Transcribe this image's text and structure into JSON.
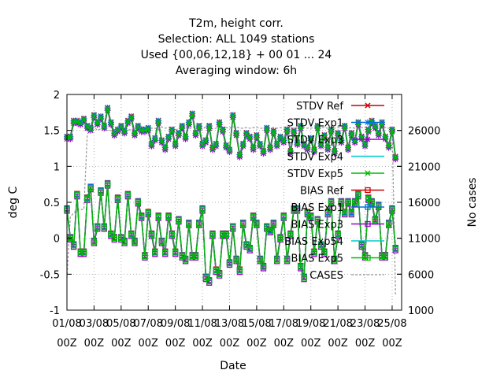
{
  "chart_data": {
    "type": "line",
    "title_lines": [
      "T2m, height corr.",
      "Selection: ALL    1049 stations",
      "Used {00,06,12,18} + 00 01 ... 24",
      "Averaging window:  6h"
    ],
    "xlabel": "Date",
    "ylabel": "deg C",
    "y2label": "No cases",
    "xlim": [
      0,
      24.7
    ],
    "ylim": [
      -1,
      2
    ],
    "y2lim": [
      1000,
      31000
    ],
    "x_ticks": [
      {
        "x": 0,
        "l1": "01/08",
        "l2": "00Z"
      },
      {
        "x": 2,
        "l1": "03/08",
        "l2": "00Z"
      },
      {
        "x": 4,
        "l1": "05/08",
        "l2": "00Z"
      },
      {
        "x": 6,
        "l1": "07/08",
        "l2": "00Z"
      },
      {
        "x": 8,
        "l1": "09/08",
        "l2": "00Z"
      },
      {
        "x": 10,
        "l1": "11/08",
        "l2": "00Z"
      },
      {
        "x": 12,
        "l1": "13/08",
        "l2": "00Z"
      },
      {
        "x": 14,
        "l1": "15/08",
        "l2": "00Z"
      },
      {
        "x": 16,
        "l1": "17/08",
        "l2": "00Z"
      },
      {
        "x": 18,
        "l1": "19/08",
        "l2": "00Z"
      },
      {
        "x": 20,
        "l1": "21/08",
        "l2": "00Z"
      },
      {
        "x": 22,
        "l1": "23/08",
        "l2": "00Z"
      },
      {
        "x": 24,
        "l1": "25/08",
        "l2": "00Z"
      }
    ],
    "y_ticks": [
      "-1",
      "-0.5",
      "0",
      "0.5",
      "1",
      "1.5",
      "2"
    ],
    "y2_ticks": [
      "1000",
      "6000",
      "11000",
      "16000",
      "21000",
      "26000"
    ],
    "grid": true,
    "legend_position": "top-right",
    "step_days": 0.25,
    "series": [
      {
        "name": "STDV Ref",
        "color": "#cc0000",
        "marker": "x",
        "group": "stdv"
      },
      {
        "name": "STDV Exp1",
        "color": "#0070e0",
        "marker": "star",
        "group": "stdv"
      },
      {
        "name": "STDV Exp3",
        "color": "#9900cc",
        "marker": "star",
        "group": "stdv"
      },
      {
        "name": "STDV Exp4",
        "color": "#00cccc",
        "marker": "none",
        "group": "stdv"
      },
      {
        "name": "STDV Exp5",
        "color": "#00bb00",
        "marker": "x",
        "group": "stdv"
      },
      {
        "name": "BIAS Ref",
        "color": "#cc0000",
        "marker": "square",
        "group": "bias"
      },
      {
        "name": "BIAS Exp1",
        "color": "#0070e0",
        "marker": "square",
        "group": "bias"
      },
      {
        "name": "BIAS Exp3",
        "color": "#9900cc",
        "marker": "square",
        "group": "bias"
      },
      {
        "name": "BIAS Exp54",
        "color": "#00cccc",
        "marker": "none",
        "group": "bias"
      },
      {
        "name": "BIAS Exp5",
        "color": "#00bb00",
        "marker": "square",
        "group": "bias"
      },
      {
        "name": "CASES",
        "color": "#999999",
        "marker": "dash",
        "group": "cases"
      }
    ],
    "stdv_values": [
      1.4,
      1.4,
      1.62,
      1.62,
      1.6,
      1.65,
      1.55,
      1.52,
      1.7,
      1.6,
      1.68,
      1.55,
      1.8,
      1.6,
      1.45,
      1.5,
      1.55,
      1.48,
      1.62,
      1.68,
      1.45,
      1.55,
      1.5,
      1.5,
      1.52,
      1.3,
      1.38,
      1.62,
      1.35,
      1.25,
      1.4,
      1.5,
      1.3,
      1.45,
      1.55,
      1.4,
      1.6,
      1.72,
      1.45,
      1.55,
      1.3,
      1.35,
      1.55,
      1.25,
      1.3,
      1.6,
      1.5,
      1.28,
      1.22,
      1.7,
      1.45,
      1.15,
      1.3,
      1.45,
      1.4,
      1.25,
      1.42,
      1.3,
      1.2,
      1.52,
      1.25,
      1.48,
      1.3,
      1.4,
      1.35,
      1.5,
      1.2,
      1.48,
      1.32,
      1.55,
      1.3,
      1.25,
      1.38,
      1.22,
      1.55,
      1.3,
      1.42,
      1.25,
      1.5,
      1.2,
      1.45,
      1.35,
      1.55,
      1.25,
      1.45,
      1.35,
      1.6,
      1.4,
      1.3,
      1.5,
      1.62,
      1.55,
      1.45,
      1.6,
      1.4,
      1.28,
      1.5,
      1.12
    ],
    "bias_values": [
      0.4,
      0.0,
      -0.1,
      0.6,
      -0.2,
      -0.2,
      0.55,
      0.7,
      -0.05,
      0.15,
      0.65,
      0.15,
      0.75,
      0.05,
      0.0,
      0.55,
      0.0,
      -0.05,
      0.6,
      0.05,
      -0.05,
      0.5,
      0.3,
      -0.25,
      0.35,
      0.05,
      -0.2,
      0.3,
      -0.05,
      -0.2,
      0.3,
      0.05,
      -0.2,
      0.25,
      -0.25,
      -0.3,
      0.2,
      -0.25,
      -0.25,
      0.2,
      0.4,
      -0.55,
      -0.6,
      0.05,
      -0.45,
      -0.5,
      0.05,
      0.05,
      -0.35,
      0.15,
      -0.3,
      -0.45,
      0.2,
      -0.1,
      -0.15,
      0.3,
      0.2,
      -0.3,
      -0.4,
      0.15,
      0.1,
      0.2,
      -0.3,
      0.0,
      0.3,
      -0.3,
      0.05,
      0.4,
      0.4,
      -0.4,
      -0.55,
      0.35,
      0.3,
      -0.2,
      0.25,
      -0.1,
      -0.2,
      0.35,
      0.5,
      -0.3,
      0.05,
      0.5,
      0.35,
      0.5,
      0.35,
      0.5,
      0.6,
      -0.1,
      -0.25,
      0.55,
      0.5,
      0.25,
      0.45,
      -0.25,
      -0.25,
      0.2,
      0.4,
      -0.15
    ],
    "cases_values": [
      5500,
      14000,
      14500,
      15000,
      15000,
      15000,
      25500,
      26000,
      26500,
      26000,
      26200,
      26300,
      26000,
      26000,
      26100,
      26300,
      26200,
      26100,
      26000,
      26200,
      26000,
      26100,
      26300,
      26200,
      26400,
      26300,
      26300,
      26100,
      26500,
      26300,
      26400,
      26200,
      26000,
      26300,
      26100,
      26400,
      26200,
      26400,
      26600,
      26300,
      26200,
      26500,
      26300,
      26200,
      26300,
      26600,
      26400,
      26400,
      26300,
      26500,
      26500,
      26300,
      26300,
      26400,
      26300,
      26400,
      26400,
      26300,
      26300,
      26400,
      26300,
      26400,
      26300,
      26400,
      26300,
      26500,
      26400,
      26300,
      26400,
      26400,
      26400,
      26300,
      26300,
      26400,
      26300,
      26400,
      26400,
      26300,
      26400,
      26300,
      26400,
      26300,
      26400,
      26300,
      26400,
      26300,
      26400,
      26400,
      26400,
      26300,
      26400,
      26300,
      26400,
      26300,
      26400,
      26300,
      26400,
      3000
    ]
  }
}
